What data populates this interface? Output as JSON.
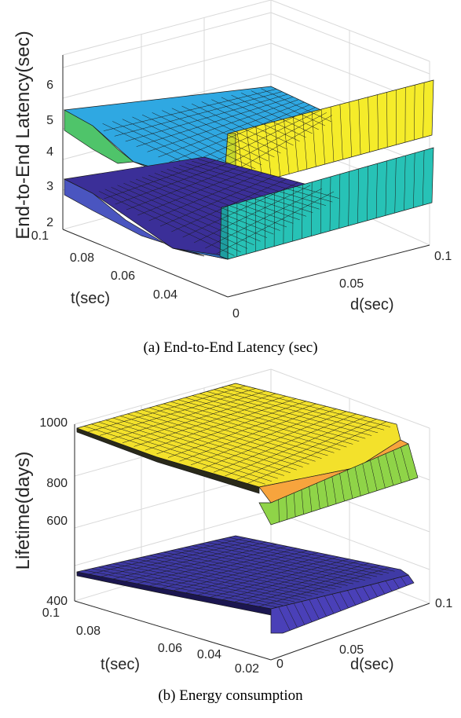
{
  "figures": {
    "a_caption": "(a) End-to-End Latency (sec)",
    "b_caption": "(b) Energy consumption"
  },
  "chart_data": [
    {
      "type": "surface",
      "title": "",
      "xlabel": "d(sec)",
      "ylabel": "t(sec)",
      "zlabel": "End-to-End Latency(sec)",
      "xticks": [
        "0",
        "0.05",
        "0.1"
      ],
      "yticks": [
        "0.04",
        "0.06",
        "0.08",
        "0.1"
      ],
      "zticks": [
        "2",
        "3",
        "4",
        "5",
        "6"
      ],
      "xlim": [
        0,
        0.1
      ],
      "ylim": [
        0.02,
        0.1
      ],
      "zlim": [
        2,
        6.5
      ],
      "grid": true,
      "series": [
        {
          "colormap": [
            "#2fa3e0",
            "#d9e93a",
            "#fae61e"
          ],
          "approx_z": {
            "flat": 4.4,
            "min": 4.2,
            "max_at_d_0.1": 6.0,
            "at_d_0": 5.0
          }
        },
        {
          "colormap": [
            "#4a3fa0",
            "#2fbcb0",
            "#27c0b5"
          ],
          "approx_z": {
            "flat": 3.1,
            "min": 2.8,
            "max_at_d_0.1": 4.6,
            "at_d_0": 3.4
          }
        }
      ]
    },
    {
      "type": "surface",
      "title": "",
      "xlabel": "d(sec)",
      "ylabel": "t(sec)",
      "zlabel": "Lifetime(days)",
      "xticks": [
        "0",
        "0.05",
        "0.1"
      ],
      "yticks": [
        "0.02",
        "0.04",
        "0.06",
        "0.08",
        "0.1"
      ],
      "zticks": [
        "400",
        "600",
        "800",
        "1000"
      ],
      "xlim": [
        0,
        0.1
      ],
      "ylim": [
        0.02,
        0.1
      ],
      "zlim": [
        400,
        1050
      ],
      "grid": true,
      "series": [
        {
          "colormap": [
            "#f5e62a",
            "#f7a43d",
            "#8fd448"
          ],
          "approx_z": {
            "plateau": 1000,
            "drop_to": 830
          }
        },
        {
          "colormap": [
            "#3f3aa5",
            "#4a40b8"
          ],
          "approx_z": {
            "plateau": 520,
            "drop_to": 470
          }
        }
      ]
    }
  ]
}
